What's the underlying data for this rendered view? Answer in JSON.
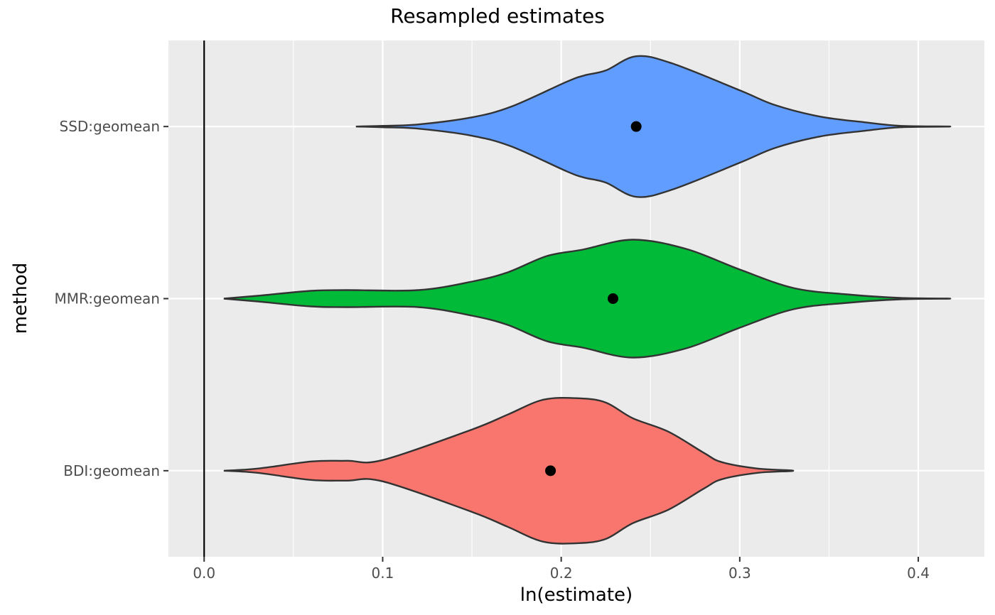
{
  "chart_data": {
    "type": "violin",
    "orientation": "horizontal",
    "title": "Resampled estimates",
    "xlabel": "ln(estimate)",
    "ylabel": "method",
    "xlim": [
      -0.02,
      0.437
    ],
    "xticks": [
      0.0,
      0.1,
      0.2,
      0.3,
      0.4
    ],
    "xtick_labels": [
      "0.0",
      "0.1",
      "0.2",
      "0.3",
      "0.4"
    ],
    "grid": true,
    "vline_x": 0.0,
    "categories": [
      "SSD:geomean",
      "MMR:geomean",
      "BDI:geomean"
    ],
    "series": [
      {
        "category": "SSD:geomean",
        "fill": "#619CFF",
        "point": 0.242,
        "density": [
          [
            0.085,
            0.0
          ],
          [
            0.1,
            0.01
          ],
          [
            0.12,
            0.03
          ],
          [
            0.15,
            0.13
          ],
          [
            0.172,
            0.28
          ],
          [
            0.203,
            0.63
          ],
          [
            0.213,
            0.72
          ],
          [
            0.225,
            0.79
          ],
          [
            0.242,
            0.99
          ],
          [
            0.262,
            0.89
          ],
          [
            0.3,
            0.51
          ],
          [
            0.32,
            0.3
          ],
          [
            0.345,
            0.14
          ],
          [
            0.37,
            0.06
          ],
          [
            0.39,
            0.01
          ],
          [
            0.418,
            0.0
          ]
        ]
      },
      {
        "category": "MMR:geomean",
        "fill": "#00BA38",
        "point": 0.229,
        "density": [
          [
            0.011,
            0.0
          ],
          [
            0.03,
            0.04
          ],
          [
            0.06,
            0.11
          ],
          [
            0.08,
            0.12
          ],
          [
            0.12,
            0.12
          ],
          [
            0.15,
            0.24
          ],
          [
            0.17,
            0.37
          ],
          [
            0.192,
            0.6
          ],
          [
            0.212,
            0.69
          ],
          [
            0.24,
            0.83
          ],
          [
            0.27,
            0.7
          ],
          [
            0.3,
            0.41
          ],
          [
            0.33,
            0.15
          ],
          [
            0.36,
            0.06
          ],
          [
            0.39,
            0.01
          ],
          [
            0.418,
            0.0
          ]
        ]
      },
      {
        "category": "BDI:geomean",
        "fill": "#F8766D",
        "point": 0.194,
        "density": [
          [
            0.011,
            0.0
          ],
          [
            0.03,
            0.03
          ],
          [
            0.06,
            0.13
          ],
          [
            0.08,
            0.14
          ],
          [
            0.1,
            0.15
          ],
          [
            0.15,
            0.58
          ],
          [
            0.17,
            0.79
          ],
          [
            0.19,
            1.0
          ],
          [
            0.21,
            1.02
          ],
          [
            0.225,
            0.96
          ],
          [
            0.24,
            0.74
          ],
          [
            0.26,
            0.55
          ],
          [
            0.28,
            0.25
          ],
          [
            0.29,
            0.12
          ],
          [
            0.31,
            0.03
          ],
          [
            0.33,
            0.0
          ]
        ]
      }
    ]
  }
}
